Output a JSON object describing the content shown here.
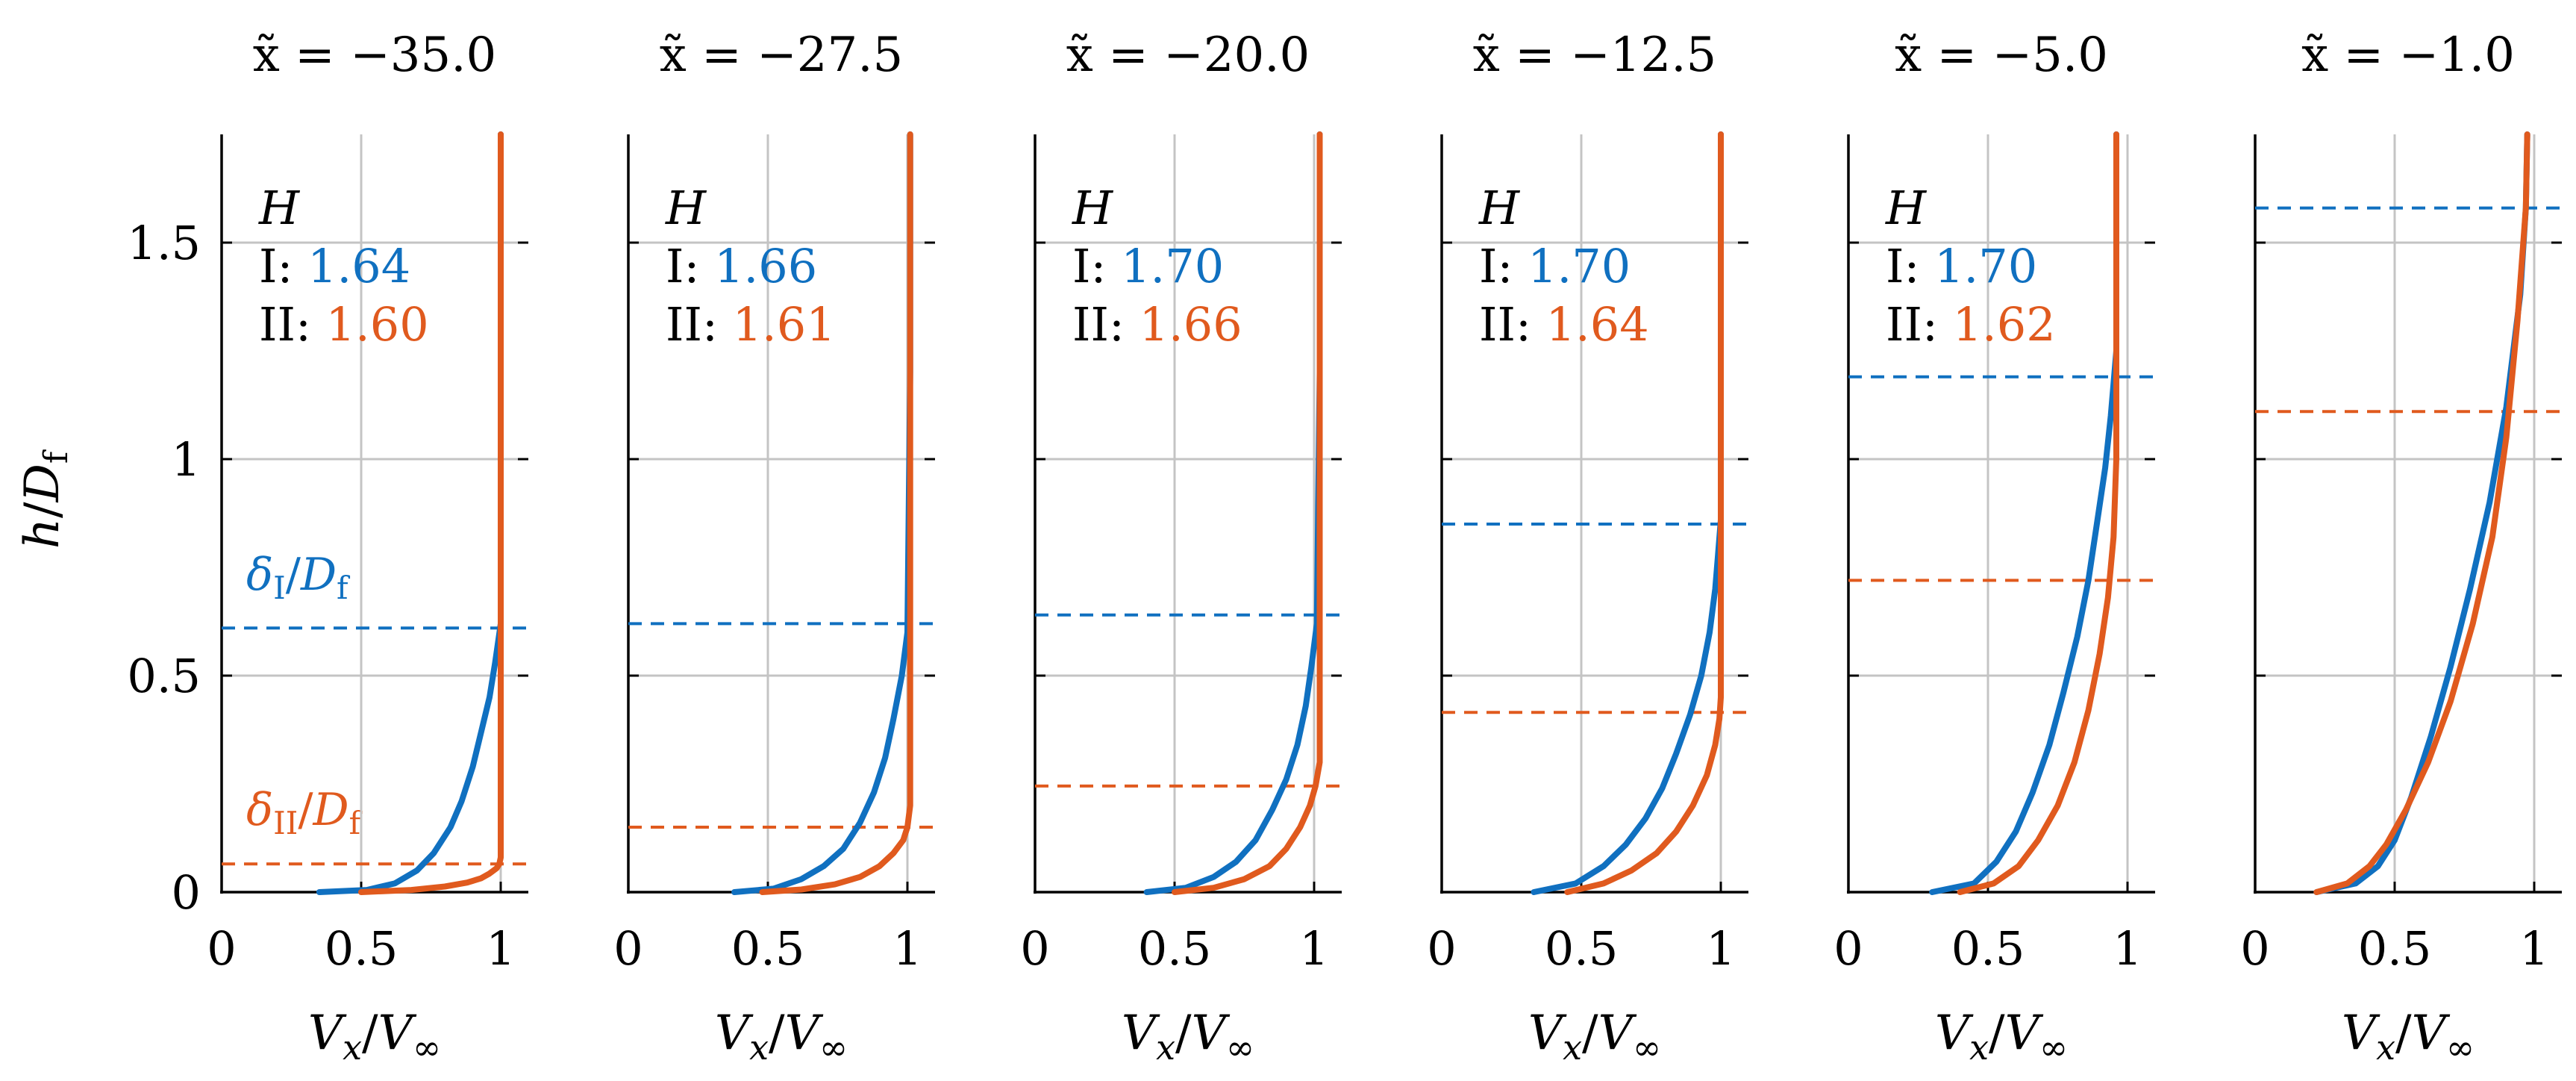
{
  "labels": {
    "ylabel_main": "h",
    "ylabel_sub": "f",
    "xlabel_main": "V",
    "xlabel_x": "x",
    "xlabel_inf": "∞",
    "d_sub": "D",
    "slash": "/",
    "tilde_x": "x̃",
    "eq": " = ",
    "H_title": "H",
    "I_label": "I: ",
    "II_label": "II: ",
    "legend_delta": "δ",
    "legend_I_sub": "I",
    "legend_II_sub": "II",
    "legend_D": "D",
    "legend_f": "f"
  },
  "colors": {
    "blue": "#1070C0",
    "orange": "#E05A1E",
    "grid": "#c4c4c4",
    "axis": "#000000"
  },
  "chart_data": [
    {
      "type": "line",
      "title": "x̃ = −35.0",
      "x_value": "−35.0",
      "xlabel": "Vx/V∞",
      "ylabel": "h/Df",
      "xlim": [
        0,
        1.1
      ],
      "ylim": [
        0,
        1.75
      ],
      "xticks": [
        0,
        0.5,
        1
      ],
      "xtick_labels": [
        "0",
        "0.5",
        "1"
      ],
      "yticks": [
        0,
        0.5,
        1,
        1.5
      ],
      "ytick_labels": [
        "0",
        "0.5",
        "1",
        "1.5"
      ],
      "H": {
        "I": "1.64",
        "II": "1.60"
      },
      "delta": {
        "I": 0.61,
        "II": 0.065
      },
      "series": [
        {
          "name": "I",
          "x": [
            0.35,
            0.52,
            0.62,
            0.7,
            0.76,
            0.82,
            0.86,
            0.9,
            0.93,
            0.96,
            0.98,
            1.0,
            1.0,
            1.0
          ],
          "y": [
            0,
            0.005,
            0.02,
            0.05,
            0.09,
            0.15,
            0.21,
            0.29,
            0.37,
            0.45,
            0.53,
            0.62,
            1.2,
            1.75
          ]
        },
        {
          "name": "II",
          "x": [
            0.5,
            0.68,
            0.8,
            0.88,
            0.93,
            0.96,
            0.985,
            0.995,
            1.0,
            1.0,
            1.0
          ],
          "y": [
            0,
            0.005,
            0.013,
            0.022,
            0.032,
            0.043,
            0.055,
            0.065,
            0.08,
            1.0,
            1.75
          ]
        }
      ]
    },
    {
      "type": "line",
      "title": "x̃ = −27.5",
      "x_value": "−27.5",
      "xlabel": "Vx/V∞",
      "ylabel": "h/Df",
      "xlim": [
        0,
        1.1
      ],
      "ylim": [
        0,
        1.75
      ],
      "xticks": [
        0,
        0.5,
        1
      ],
      "xtick_labels": [
        "0",
        "0.5",
        "1"
      ],
      "yticks": [
        0,
        0.5,
        1,
        1.5
      ],
      "ytick_labels": [
        "0",
        "0.5",
        "1",
        "1.5"
      ],
      "H": {
        "I": "1.66",
        "II": "1.61"
      },
      "delta": {
        "I": 0.62,
        "II": 0.15
      },
      "series": [
        {
          "name": "I",
          "x": [
            0.38,
            0.52,
            0.62,
            0.7,
            0.77,
            0.83,
            0.88,
            0.92,
            0.95,
            0.98,
            1.0,
            1.01,
            1.01
          ],
          "y": [
            0,
            0.008,
            0.03,
            0.06,
            0.1,
            0.16,
            0.23,
            0.31,
            0.4,
            0.5,
            0.6,
            1.2,
            1.75
          ]
        },
        {
          "name": "II",
          "x": [
            0.48,
            0.62,
            0.74,
            0.83,
            0.9,
            0.95,
            0.985,
            1.0,
            1.01,
            1.01
          ],
          "y": [
            0,
            0.006,
            0.018,
            0.035,
            0.06,
            0.09,
            0.12,
            0.15,
            0.2,
            1.75
          ]
        }
      ]
    },
    {
      "type": "line",
      "title": "x̃ = −20.0",
      "x_value": "−20.0",
      "xlabel": "Vx/V∞",
      "ylabel": "h/Df",
      "xlim": [
        0,
        1.1
      ],
      "ylim": [
        0,
        1.75
      ],
      "xticks": [
        0,
        0.5,
        1
      ],
      "xtick_labels": [
        "0",
        "0.5",
        "1"
      ],
      "yticks": [
        0,
        0.5,
        1,
        1.5
      ],
      "ytick_labels": [
        "0",
        "0.5",
        "1",
        "1.5"
      ],
      "H": {
        "I": "1.70",
        "II": "1.66"
      },
      "delta": {
        "I": 0.64,
        "II": 0.245
      },
      "series": [
        {
          "name": "I",
          "x": [
            0.4,
            0.54,
            0.64,
            0.72,
            0.79,
            0.85,
            0.9,
            0.94,
            0.97,
            0.99,
            1.01,
            1.02,
            1.02
          ],
          "y": [
            0,
            0.01,
            0.035,
            0.07,
            0.12,
            0.19,
            0.26,
            0.34,
            0.43,
            0.52,
            0.62,
            1.2,
            1.75
          ]
        },
        {
          "name": "II",
          "x": [
            0.5,
            0.64,
            0.75,
            0.84,
            0.9,
            0.95,
            0.985,
            1.005,
            1.02,
            1.02
          ],
          "y": [
            0,
            0.01,
            0.03,
            0.06,
            0.1,
            0.15,
            0.2,
            0.245,
            0.3,
            1.75
          ]
        }
      ]
    },
    {
      "type": "line",
      "title": "x̃ = −12.5",
      "x_value": "−12.5",
      "xlabel": "Vx/V∞",
      "ylabel": "h/Df",
      "xlim": [
        0,
        1.1
      ],
      "ylim": [
        0,
        1.75
      ],
      "xticks": [
        0,
        0.5,
        1
      ],
      "xtick_labels": [
        "0",
        "0.5",
        "1"
      ],
      "yticks": [
        0,
        0.5,
        1,
        1.5
      ],
      "ytick_labels": [
        "0",
        "0.5",
        "1",
        "1.5"
      ],
      "H": {
        "I": "1.70",
        "II": "1.64"
      },
      "delta": {
        "I": 0.85,
        "II": 0.415
      },
      "series": [
        {
          "name": "I",
          "x": [
            0.33,
            0.48,
            0.58,
            0.66,
            0.73,
            0.79,
            0.84,
            0.89,
            0.93,
            0.96,
            0.98,
            0.99,
            1.0,
            1.0
          ],
          "y": [
            0,
            0.02,
            0.06,
            0.11,
            0.17,
            0.24,
            0.32,
            0.41,
            0.5,
            0.6,
            0.7,
            0.78,
            0.86,
            1.75
          ]
        },
        {
          "name": "II",
          "x": [
            0.45,
            0.58,
            0.68,
            0.77,
            0.84,
            0.9,
            0.95,
            0.98,
            0.995,
            1.0,
            1.0
          ],
          "y": [
            0,
            0.02,
            0.05,
            0.09,
            0.14,
            0.2,
            0.27,
            0.34,
            0.4,
            0.45,
            1.75
          ]
        }
      ]
    },
    {
      "type": "line",
      "title": "x̃ = −5.0",
      "x_value": "−5.0",
      "xlabel": "Vx/V∞",
      "ylabel": "h/Df",
      "xlim": [
        0,
        1.1
      ],
      "ylim": [
        0,
        1.75
      ],
      "xticks": [
        0,
        0.5,
        1
      ],
      "xtick_labels": [
        "0",
        "0.5",
        "1"
      ],
      "yticks": [
        0,
        0.5,
        1,
        1.5
      ],
      "ytick_labels": [
        "0",
        "0.5",
        "1",
        "1.5"
      ],
      "H": {
        "I": "1.70",
        "II": "1.62"
      },
      "delta": {
        "I": 1.19,
        "II": 0.72
      },
      "series": [
        {
          "name": "I",
          "x": [
            0.3,
            0.45,
            0.53,
            0.6,
            0.66,
            0.72,
            0.77,
            0.82,
            0.86,
            0.89,
            0.92,
            0.94,
            0.96,
            0.96
          ],
          "y": [
            0,
            0.02,
            0.07,
            0.14,
            0.23,
            0.34,
            0.46,
            0.59,
            0.72,
            0.85,
            0.98,
            1.1,
            1.25,
            1.75
          ]
        },
        {
          "name": "II",
          "x": [
            0.4,
            0.52,
            0.61,
            0.68,
            0.75,
            0.81,
            0.86,
            0.9,
            0.93,
            0.95,
            0.96,
            0.96
          ],
          "y": [
            0,
            0.02,
            0.06,
            0.12,
            0.2,
            0.3,
            0.42,
            0.55,
            0.68,
            0.82,
            1.0,
            1.75
          ]
        }
      ]
    },
    {
      "type": "line",
      "title": "x̃ = −1.0",
      "x_value": "−1.0",
      "xlabel": "Vx/V∞",
      "ylabel": "h/Df",
      "xlim": [
        0,
        1.1
      ],
      "ylim": [
        0,
        1.75
      ],
      "xticks": [
        0,
        0.5,
        1
      ],
      "xtick_labels": [
        "0",
        "0.5",
        "1"
      ],
      "yticks": [
        0,
        0.5,
        1,
        1.5
      ],
      "ytick_labels": [
        "0",
        "0.5",
        "1",
        "1.5"
      ],
      "H": {
        "I": "",
        "II": ""
      },
      "delta": {
        "I": 1.58,
        "II": 1.11
      },
      "series": [
        {
          "name": "I",
          "x": [
            0.22,
            0.36,
            0.44,
            0.5,
            0.56,
            0.63,
            0.7,
            0.77,
            0.84,
            0.9,
            0.95,
            0.97,
            0.975
          ],
          "y": [
            0,
            0.02,
            0.06,
            0.12,
            0.22,
            0.36,
            0.52,
            0.7,
            0.9,
            1.12,
            1.38,
            1.58,
            1.75
          ]
        },
        {
          "name": "II",
          "x": [
            0.22,
            0.33,
            0.41,
            0.47,
            0.54,
            0.62,
            0.7,
            0.78,
            0.85,
            0.9,
            0.94,
            0.97,
            0.975
          ],
          "y": [
            0,
            0.02,
            0.06,
            0.11,
            0.19,
            0.3,
            0.44,
            0.62,
            0.82,
            1.05,
            1.32,
            1.58,
            1.75
          ]
        }
      ]
    }
  ]
}
